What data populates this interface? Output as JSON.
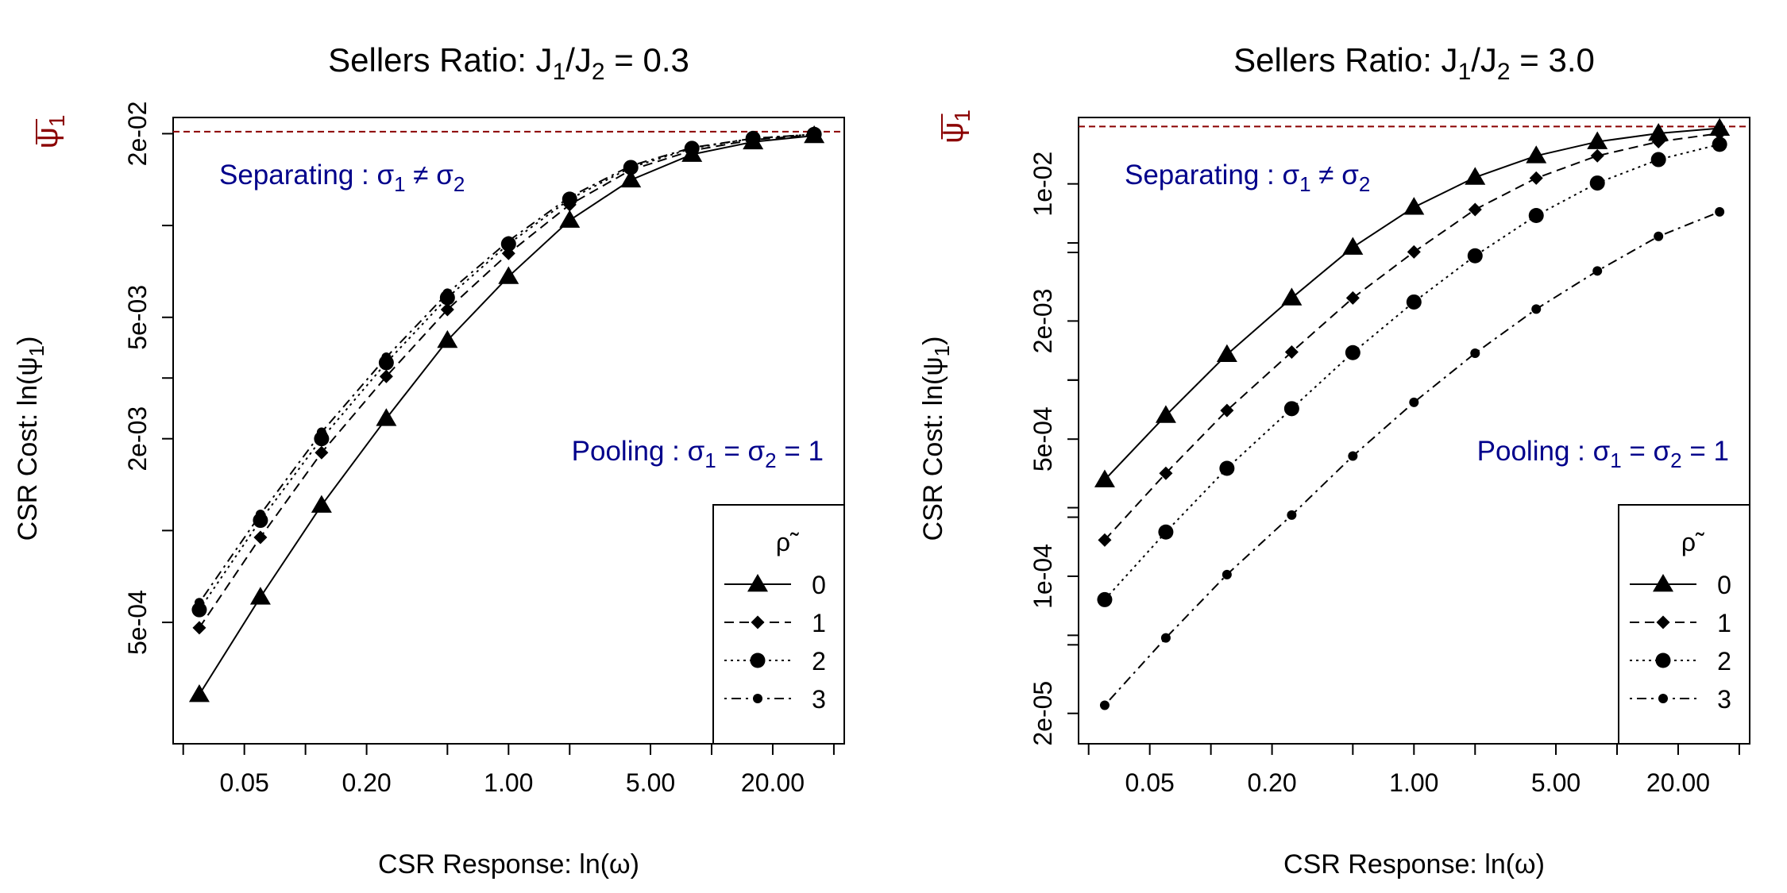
{
  "chart_data": [
    {
      "type": "line",
      "title_prefix": "Sellers Ratio:",
      "title_ratio_value": "= 0.3",
      "xlabel_prefix": "CSR Response: ln",
      "ylabel_prefix": "CSR Cost: ln",
      "x_scale": "log",
      "y_scale": "log",
      "x_ticks": [
        0.05,
        0.2,
        1.0,
        5.0,
        20.0
      ],
      "x_tick_labels": [
        "0.05",
        "0.20",
        "1.00",
        "5.00",
        "20.00"
      ],
      "y_ticks": [
        0.0005,
        0.002,
        0.005,
        0.02
      ],
      "y_tick_labels": [
        "5e-04",
        "2e-03",
        "5e-03",
        "2e-02"
      ],
      "xlim": [
        0.0223,
        45
      ],
      "ylim": [
        0.0002,
        0.0226
      ],
      "reference_line": {
        "value": 0.0203,
        "color": "#8B0000",
        "style": "dashed"
      },
      "annotation_separating": {
        "label": "Separating :",
        "math": "σ₁ ≠ σ₂"
      },
      "annotation_pooling": {
        "label": "Pooling :",
        "math": "σ₁ = σ₂ = 1"
      },
      "legend": {
        "title": "ρ̃",
        "position": "bottom-right",
        "entries": [
          "0",
          "1",
          "2",
          "3"
        ]
      },
      "x": [
        0.03,
        0.06,
        0.12,
        0.25,
        0.5,
        1.0,
        2.0,
        4.0,
        8.0,
        16.0,
        32.0
      ],
      "series": [
        {
          "name": "0",
          "marker": "triangle",
          "dash": "solid",
          "values": [
            0.00029,
            0.000605,
            0.00121,
            0.00233,
            0.0042,
            0.0068,
            0.0104,
            0.0141,
            0.0171,
            0.0188,
            0.0197
          ]
        },
        {
          "name": "1",
          "marker": "diamond",
          "dash": "dashed",
          "values": [
            0.00048,
            0.00095,
            0.0018,
            0.0032,
            0.0053,
            0.0081,
            0.0117,
            0.0152,
            0.0176,
            0.0191,
            0.0198
          ]
        },
        {
          "name": "2",
          "marker": "circle",
          "dash": "dotted",
          "values": [
            0.00055,
            0.00108,
            0.002,
            0.00355,
            0.0058,
            0.0087,
            0.0122,
            0.0155,
            0.0179,
            0.0193,
            0.0199
          ]
        },
        {
          "name": "3",
          "marker": "small-circle",
          "dash": "dotdash",
          "values": [
            0.00058,
            0.00113,
            0.0021,
            0.0037,
            0.006,
            0.0089,
            0.0124,
            0.0157,
            0.018,
            0.0193,
            0.0199
          ]
        }
      ]
    },
    {
      "type": "line",
      "title_prefix": "Sellers Ratio:",
      "title_ratio_value": "= 3.0",
      "xlabel_prefix": "CSR Response: ln",
      "ylabel_prefix": "CSR Cost: ln",
      "x_scale": "log",
      "y_scale": "log",
      "x_ticks": [
        0.05,
        0.2,
        1.0,
        5.0,
        20.0
      ],
      "x_tick_labels": [
        "0.05",
        "0.20",
        "1.00",
        "5.00",
        "20.00"
      ],
      "y_ticks": [
        2e-05,
        0.0001,
        0.0005,
        0.002,
        0.01
      ],
      "y_tick_labels": [
        "2e-05",
        "1e-04",
        "5e-04",
        "2e-03",
        "1e-02"
      ],
      "xlim": [
        0.0223,
        45
      ],
      "ylim": [
        1.4e-05,
        0.0218
      ],
      "reference_line": {
        "value": 0.0196,
        "color": "#8B0000",
        "style": "dashed"
      },
      "annotation_separating": {
        "label": "Separating :",
        "math": "σ₁ ≠ σ₂"
      },
      "annotation_pooling": {
        "label": "Pooling :",
        "math": "σ₁ = σ₂ = 1"
      },
      "legend": {
        "title": "ρ̃",
        "position": "bottom-right",
        "entries": [
          "0",
          "1",
          "2",
          "3"
        ]
      },
      "x": [
        0.03,
        0.06,
        0.12,
        0.25,
        0.5,
        1.0,
        2.0,
        4.0,
        8.0,
        16.0,
        32.0
      ],
      "series": [
        {
          "name": "0",
          "marker": "triangle",
          "dash": "solid",
          "values": [
            0.00031,
            0.00066,
            0.00135,
            0.00262,
            0.00475,
            0.0076,
            0.0108,
            0.0139,
            0.0164,
            0.0181,
            0.0192
          ]
        },
        {
          "name": "1",
          "marker": "diamond",
          "dash": "dashed",
          "values": [
            0.000153,
            0.000335,
            0.0007,
            0.00139,
            0.00262,
            0.0045,
            0.0074,
            0.0107,
            0.0139,
            0.0164,
            0.0181
          ]
        },
        {
          "name": "2",
          "marker": "circle",
          "dash": "dotted",
          "values": [
            7.6e-05,
            0.000168,
            0.000355,
            0.000715,
            0.00138,
            0.0025,
            0.0043,
            0.0069,
            0.0101,
            0.0133,
            0.0159
          ]
        },
        {
          "name": "3",
          "marker": "small-circle",
          "dash": "dotdash",
          "values": [
            2.2e-05,
            4.85e-05,
            0.000102,
            0.000205,
            0.00041,
            0.00077,
            0.00137,
            0.0023,
            0.0036,
            0.0054,
            0.0072
          ]
        }
      ]
    }
  ]
}
